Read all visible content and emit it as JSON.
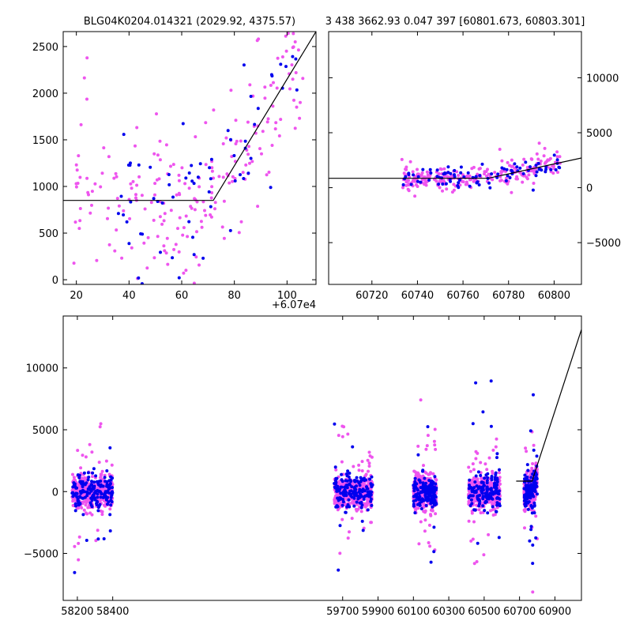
{
  "titles": {
    "left": "BLG04K0204.014321 (2029.92, 4375.57)",
    "right": "3 438 3662.93 0.047 397 [60801.673, 60803.301]"
  },
  "colors": {
    "series_a": "#0000ee",
    "series_b": "#ee55ee",
    "model": "#000000"
  },
  "chart_data": [
    {
      "id": "top-left",
      "type": "scatter",
      "title": "BLG04K0204.014321 (2029.92, 4375.57)",
      "x_offset_label": "+6.07e4",
      "xlim": [
        15,
        111
      ],
      "ylim": [
        -50,
        2660
      ],
      "xticks": [
        20,
        40,
        60,
        80,
        100
      ],
      "yticks": [
        0,
        500,
        1000,
        1500,
        2000,
        2500
      ],
      "model_line": {
        "x": [
          15,
          72,
          111
        ],
        "y": [
          850,
          850,
          2660
        ]
      },
      "series": [
        {
          "color_key": "series_b",
          "seed": 11,
          "n": 230,
          "x_range": [
            18,
            106
          ],
          "base": 850,
          "knee": 72,
          "slope": 47,
          "spread": 430
        },
        {
          "color_key": "series_a",
          "seed": 23,
          "n": 70,
          "x_range": [
            35,
            104
          ],
          "base": 850,
          "knee": 72,
          "slope": 47,
          "spread": 430
        }
      ]
    },
    {
      "id": "top-right",
      "type": "scatter",
      "title": "3 438 3662.93 0.047 397 [60801.673, 60803.301]",
      "xlim": [
        60701,
        60812
      ],
      "ylim": [
        -8800,
        14200
      ],
      "xticks": [
        60720,
        60740,
        60760,
        60780,
        60800
      ],
      "yticks": [
        -5000,
        0,
        5000,
        10000
      ],
      "model_line": {
        "x": [
          60701,
          60771,
          60812
        ],
        "y": [
          850,
          850,
          2700
        ]
      },
      "series": [
        {
          "color_key": "series_b",
          "seed": 37,
          "n": 260,
          "x_range": [
            60733,
            60803
          ],
          "base": 850,
          "knee": 60771,
          "slope": 45,
          "spread": 500
        },
        {
          "color_key": "series_a",
          "seed": 41,
          "n": 90,
          "x_range": [
            60733,
            60803
          ],
          "base": 850,
          "knee": 60771,
          "slope": 45,
          "spread": 500
        }
      ]
    },
    {
      "id": "bottom",
      "type": "scatter",
      "xlim": [
        58120,
        61050
      ],
      "ylim": [
        -8800,
        14200
      ],
      "xticks": [
        58200,
        58400,
        59700,
        59900,
        60100,
        60300,
        60500,
        60700,
        60900
      ],
      "yticks": [
        -5000,
        0,
        5000,
        10000
      ],
      "model_line": {
        "x": [
          60681,
          60771,
          61050
        ],
        "y": [
          850,
          850,
          13100
        ]
      },
      "series": [
        {
          "color_key": "series_b",
          "seed": 53,
          "n": 2200,
          "seasons": [
            [
              58170,
              58400
            ],
            [
              59650,
              59870
            ],
            [
              60100,
              60230
            ],
            [
              60410,
              60590
            ],
            [
              60725,
              60800
            ]
          ],
          "spread": 650
        },
        {
          "color_key": "series_a",
          "seed": 67,
          "n": 800,
          "seasons": [
            [
              58170,
              58400
            ],
            [
              59650,
              59870
            ],
            [
              60100,
              60230
            ],
            [
              60410,
              60590
            ],
            [
              60725,
              60800
            ]
          ],
          "spread": 650
        }
      ]
    }
  ]
}
